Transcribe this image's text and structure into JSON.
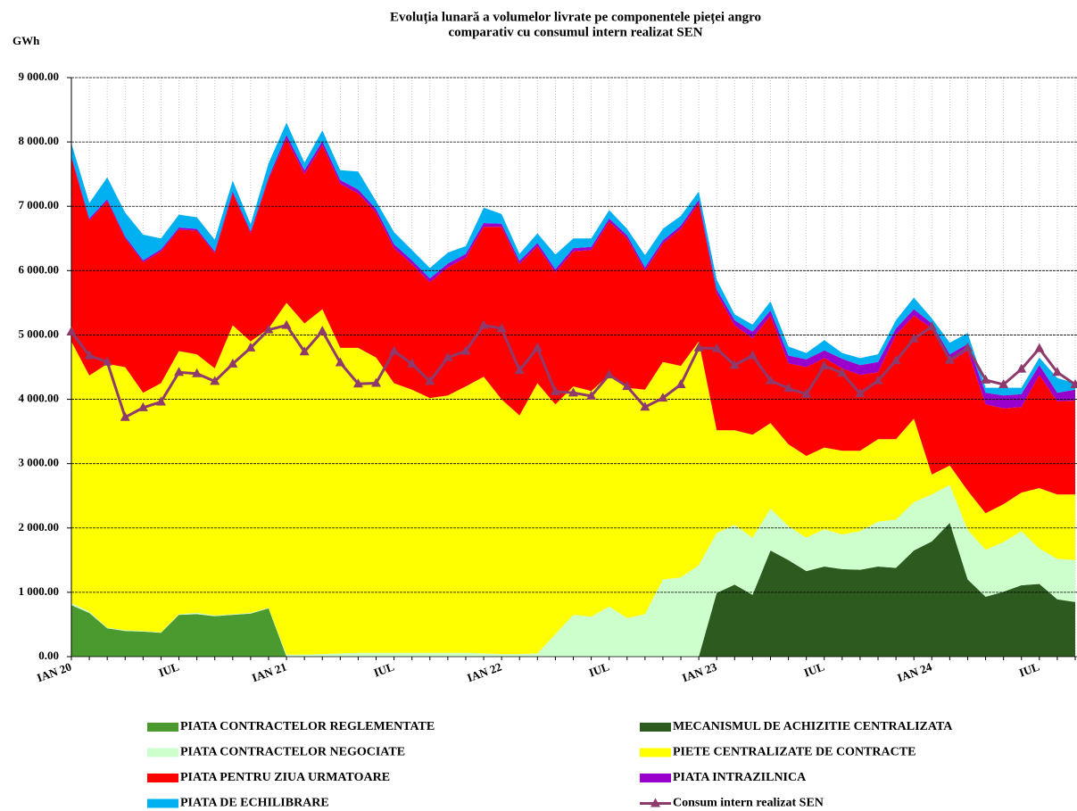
{
  "chart_data": {
    "type": "stacked-area",
    "title": [
      "Evoluția lunară a volumelor livrate pe componentele pieței angro",
      "comparativ cu consumul intern realizat SEN"
    ],
    "y_label": "GWh",
    "categories": [
      "IAN 20",
      null,
      null,
      null,
      null,
      null,
      "IUL",
      null,
      null,
      null,
      null,
      null,
      "IAN 21",
      null,
      null,
      null,
      null,
      null,
      "IUL",
      null,
      null,
      null,
      null,
      null,
      "IAN 22",
      null,
      null,
      null,
      null,
      null,
      "IUL",
      null,
      null,
      null,
      null,
      null,
      "IAN 23",
      null,
      null,
      null,
      null,
      null,
      "IUL",
      null,
      null,
      null,
      null,
      null,
      "IAN 24",
      null,
      null,
      null,
      null,
      null,
      "IUL",
      null,
      null
    ],
    "ylim": [
      0,
      9000
    ],
    "yticks": [
      {
        "value": 0,
        "label": "0.00"
      },
      {
        "value": 1000,
        "label": "1 000.00"
      },
      {
        "value": 2000,
        "label": "2 000.00"
      },
      {
        "value": 3000,
        "label": "3 000.00"
      },
      {
        "value": 4000,
        "label": "4 000.00"
      },
      {
        "value": 5000,
        "label": "5 000.00"
      },
      {
        "value": 6000,
        "label": "6 000.00"
      },
      {
        "value": 7000,
        "label": "7 000.00"
      },
      {
        "value": 8000,
        "label": "8 000.00"
      },
      {
        "value": 9000,
        "label": "9 000.00"
      }
    ],
    "grid": true,
    "series": [
      {
        "name": "PIATA CONTRACTELOR REGLEMENTATE",
        "color": "#4a9a2f",
        "type": "area",
        "values": [
          800,
          680,
          440,
          400,
          390,
          370,
          650,
          660,
          630,
          650,
          670,
          750,
          0,
          0,
          0,
          0,
          0,
          0,
          0,
          0,
          0,
          0,
          0,
          0,
          0,
          0,
          0,
          0,
          0,
          0,
          0,
          0,
          0,
          0,
          0,
          0,
          0,
          0,
          0,
          0,
          0,
          0,
          0,
          0,
          0,
          0,
          0,
          0,
          0,
          0,
          0,
          0,
          0,
          0,
          0,
          0,
          0
        ]
      },
      {
        "name": "MECANISMUL DE ACHIZITIE CENTRALIZATA",
        "color": "#2d5a1e",
        "type": "area",
        "values": [
          0,
          0,
          0,
          0,
          0,
          0,
          0,
          0,
          0,
          0,
          0,
          0,
          0,
          0,
          0,
          0,
          0,
          0,
          0,
          0,
          0,
          0,
          0,
          0,
          0,
          0,
          0,
          0,
          0,
          0,
          0,
          0,
          0,
          0,
          0,
          0,
          990,
          1120,
          960,
          1650,
          1500,
          1330,
          1400,
          1360,
          1350,
          1400,
          1380,
          1650,
          1790,
          2080,
          1200,
          930,
          1010,
          1110,
          1130,
          890,
          850
        ]
      },
      {
        "name": "PIATA CONTRACTELOR NEGOCIATE",
        "color": "#ccffcc",
        "type": "area",
        "values": [
          30,
          20,
          10,
          10,
          10,
          10,
          10,
          20,
          10,
          10,
          10,
          10,
          30,
          30,
          40,
          50,
          60,
          60,
          60,
          60,
          60,
          60,
          60,
          50,
          40,
          40,
          50,
          350,
          650,
          620,
          780,
          600,
          660,
          1200,
          1230,
          1420,
          930,
          930,
          890,
          650,
          530,
          520,
          580,
          540,
          600,
          700,
          750,
          750,
          730,
          590,
          770,
          730,
          770,
          840,
          550,
          630,
          650
        ]
      },
      {
        "name": "PIETE CENTRALIZATE DE CONTRACTE",
        "color": "#ffff00",
        "type": "area",
        "values": [
          4070,
          3670,
          4100,
          4090,
          3700,
          3870,
          4090,
          4020,
          3840,
          4490,
          4220,
          4340,
          5470,
          5150,
          5360,
          4750,
          4740,
          4590,
          4190,
          4090,
          3960,
          4000,
          4140,
          4300,
          3960,
          3710,
          4200,
          3570,
          3550,
          3510,
          3600,
          3580,
          3490,
          3380,
          3290,
          3480,
          1600,
          1470,
          1600,
          1330,
          1270,
          1270,
          1270,
          1300,
          1250,
          1280,
          1250,
          1300,
          310,
          300,
          610,
          570,
          590,
          600,
          940,
          1000,
          1020
        ]
      },
      {
        "name": "PIATA PENTRU ZIUA URMATOARE",
        "color": "#ff0000",
        "type": "area",
        "values": [
          2850,
          2410,
          2530,
          2000,
          2030,
          2050,
          1890,
          1920,
          1790,
          2050,
          1680,
          2320,
          2550,
          2320,
          2550,
          2550,
          2400,
          2250,
          2100,
          1950,
          1800,
          1990,
          2000,
          2330,
          2680,
          2350,
          2130,
          2050,
          2100,
          2190,
          2380,
          2320,
          1850,
          1840,
          2130,
          2150,
          2130,
          1630,
          1500,
          1670,
          1260,
          1380,
          1390,
          1280,
          1180,
          1040,
          1620,
          1600,
          2270,
          1610,
          2180,
          1690,
          1490,
          1330,
          1760,
          1450,
          1460
        ]
      },
      {
        "name": "PIATA INTRAZILNICA",
        "color": "#9900cc",
        "type": "area",
        "values": [
          30,
          30,
          30,
          30,
          30,
          30,
          30,
          30,
          30,
          30,
          30,
          30,
          60,
          60,
          60,
          60,
          60,
          60,
          60,
          60,
          60,
          60,
          60,
          60,
          50,
          50,
          50,
          50,
          50,
          50,
          50,
          50,
          50,
          50,
          50,
          50,
          60,
          80,
          100,
          80,
          120,
          120,
          120,
          150,
          150,
          160,
          100,
          100,
          80,
          120,
          100,
          180,
          200,
          200,
          150,
          130,
          170
        ]
      },
      {
        "name": "PIATA DE ECHILIBRARE",
        "color": "#00b0f0",
        "type": "area",
        "values": [
          200,
          240,
          340,
          370,
          400,
          170,
          200,
          180,
          180,
          170,
          110,
          220,
          190,
          120,
          170,
          150,
          280,
          120,
          190,
          160,
          160,
          170,
          120,
          240,
          150,
          110,
          150,
          230,
          150,
          130,
          130,
          100,
          190,
          180,
          150,
          130,
          150,
          90,
          110,
          140,
          140,
          100,
          160,
          90,
          110,
          120,
          130,
          180,
          80,
          180,
          170,
          80,
          120,
          100,
          120,
          230,
          100
        ]
      },
      {
        "name": "Consum intern realizat SEN",
        "color": "#8e3a6b",
        "type": "line",
        "values": [
          5050,
          4680,
          4580,
          3720,
          3870,
          3960,
          4420,
          4400,
          4280,
          4550,
          4800,
          5080,
          5150,
          4740,
          5060,
          4570,
          4240,
          4250,
          4750,
          4550,
          4280,
          4650,
          4750,
          5150,
          5100,
          4450,
          4800,
          4120,
          4100,
          4050,
          4380,
          4200,
          3880,
          4020,
          4230,
          4800,
          4790,
          4530,
          4680,
          4290,
          4170,
          4080,
          4520,
          4410,
          4090,
          4290,
          4600,
          4940,
          5130,
          4610,
          4800,
          4300,
          4230,
          4470,
          4790,
          4420,
          4230
        ]
      }
    ]
  }
}
